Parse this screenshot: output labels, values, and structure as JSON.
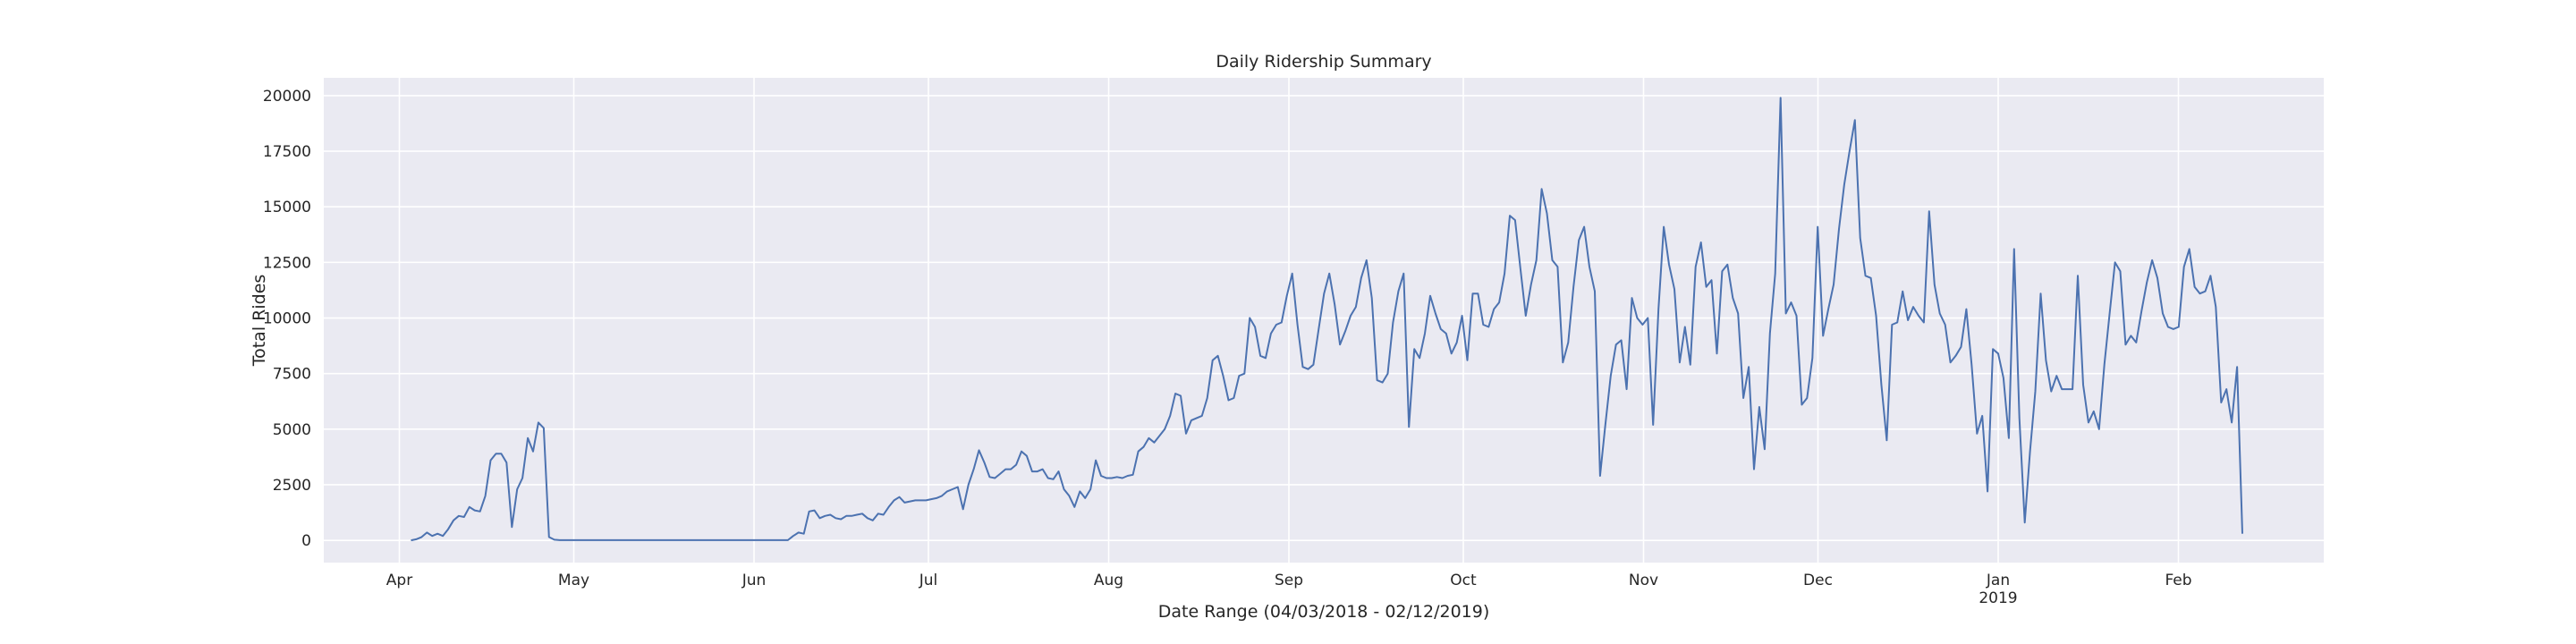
{
  "chart_data": {
    "type": "line",
    "title": "Daily Ridership Summary",
    "xlabel": "Date Range (04/03/2018 - 02/12/2019)",
    "ylabel": "Total Rides",
    "ylim": [
      -1000,
      20800
    ],
    "xlim": [
      "2018-03-19",
      "2019-02-26"
    ],
    "y_ticks": [
      0,
      2500,
      5000,
      7500,
      10000,
      12500,
      15000,
      17500,
      20000
    ],
    "y_tick_labels": [
      "0",
      "2500",
      "5000",
      "7500",
      "10000",
      "12500",
      "15000",
      "17500",
      "20000"
    ],
    "x_ticks": [
      {
        "date": "2018-04-01",
        "label": "Apr"
      },
      {
        "date": "2018-05-01",
        "label": "May"
      },
      {
        "date": "2018-06-01",
        "label": "Jun"
      },
      {
        "date": "2018-07-01",
        "label": "Jul"
      },
      {
        "date": "2018-08-01",
        "label": "Aug"
      },
      {
        "date": "2018-09-01",
        "label": "Sep"
      },
      {
        "date": "2018-10-01",
        "label": "Oct"
      },
      {
        "date": "2018-11-01",
        "label": "Nov"
      },
      {
        "date": "2018-12-01",
        "label": "Dec"
      },
      {
        "date": "2019-01-01",
        "label": "Jan",
        "sublabel": "2019"
      },
      {
        "date": "2019-02-01",
        "label": "Feb"
      }
    ],
    "grid": true,
    "colors": {
      "line": "#4c72b0",
      "plot_bg": "#eaeaf2",
      "grid": "#ffffff",
      "text": "#262626"
    },
    "series": [
      {
        "x_start": "2018-04-03",
        "x_end": "2019-02-12",
        "values": [
          0,
          50,
          150,
          350,
          200,
          300,
          200,
          500,
          900,
          1100,
          1050,
          1500,
          1350,
          1300,
          2000,
          3600,
          3900,
          3900,
          3500,
          600,
          2300,
          2800,
          4600,
          4000,
          5300,
          5050,
          150,
          30,
          10,
          10,
          10,
          10,
          10,
          10,
          10,
          10,
          10,
          10,
          10,
          10,
          10,
          10,
          10,
          10,
          10,
          10,
          10,
          10,
          10,
          10,
          10,
          10,
          10,
          10,
          10,
          10,
          10,
          10,
          10,
          10,
          10,
          10,
          10,
          10,
          10,
          10,
          10,
          10,
          10,
          10,
          10,
          10,
          200,
          350,
          300,
          1300,
          1350,
          1000,
          1100,
          1150,
          1000,
          950,
          1100,
          1100,
          1150,
          1200,
          1000,
          900,
          1200,
          1150,
          1500,
          1800,
          1950,
          1700,
          1750,
          1800,
          1800,
          1800,
          1850,
          1900,
          2000,
          2200,
          2300,
          2400,
          1400,
          2500,
          3200,
          4050,
          3500,
          2850,
          2800,
          3000,
          3200,
          3200,
          3400,
          4000,
          3800,
          3100,
          3100,
          3200,
          2800,
          2750,
          3100,
          2300,
          2000,
          1500,
          2200,
          1900,
          2300,
          3600,
          2900,
          2800,
          2800,
          2850,
          2800,
          2900,
          2950,
          4000,
          4200,
          4600,
          4400,
          4700,
          5000,
          5600,
          6600,
          6500,
          4800,
          5400,
          5500,
          5600,
          6400,
          8100,
          8300,
          7400,
          6300,
          6400,
          7400,
          7500,
          10000,
          9600,
          8300,
          8200,
          9300,
          9700,
          9800,
          11000,
          12000,
          9700,
          7800,
          7700,
          7900,
          9500,
          11100,
          12000,
          10600,
          8800,
          9400,
          10100,
          10500,
          11800,
          12600,
          10900,
          7200,
          7100,
          7500,
          9800,
          11200,
          12000,
          5100,
          8600,
          8200,
          9300,
          11000,
          10200,
          9500,
          9300,
          8400,
          8900,
          10100,
          8100,
          11100,
          11100,
          9700,
          9600,
          10400,
          10700,
          12000,
          14600,
          14400,
          12200,
          10100,
          11500,
          12600,
          15800,
          14700,
          12600,
          12300,
          8000,
          8900,
          11400,
          13500,
          14100,
          12300,
          11200,
          2900,
          5200,
          7400,
          8800,
          9000,
          6800,
          10900,
          10000,
          9700,
          10000,
          5200,
          10400,
          14100,
          12400,
          11300,
          8000,
          9600,
          7900,
          12300,
          13400,
          11400,
          11700,
          8400,
          12100,
          12400,
          10900,
          10200,
          6400,
          7800,
          3200,
          6000,
          4100,
          9300,
          12000,
          19900,
          10200,
          10700,
          10100,
          6100,
          6400,
          8200,
          14100,
          9200,
          10400,
          11500,
          14000,
          16000,
          17500,
          18900,
          13600,
          11900,
          11800,
          10100,
          7000,
          4500,
          9700,
          9800,
          11200,
          9900,
          10500,
          10100,
          9800,
          14800,
          11500,
          10200,
          9700,
          8000,
          8300,
          8700,
          10400,
          7900,
          4800,
          5600,
          2200,
          8600,
          8400,
          7300,
          4600,
          13100,
          5500,
          800,
          4000,
          6700,
          11100,
          8100,
          6700,
          7400,
          6800,
          6800,
          6800,
          11900,
          7000,
          5300,
          5800,
          5000,
          7900,
          10200,
          12500,
          12100,
          8800,
          9200,
          8900,
          10300,
          11600,
          12600,
          11800,
          10200,
          9600,
          9500,
          9600,
          12300,
          13100,
          11400,
          11100,
          11200,
          11900,
          10500,
          6200,
          6800,
          5300,
          7800,
          300
        ]
      }
    ]
  }
}
